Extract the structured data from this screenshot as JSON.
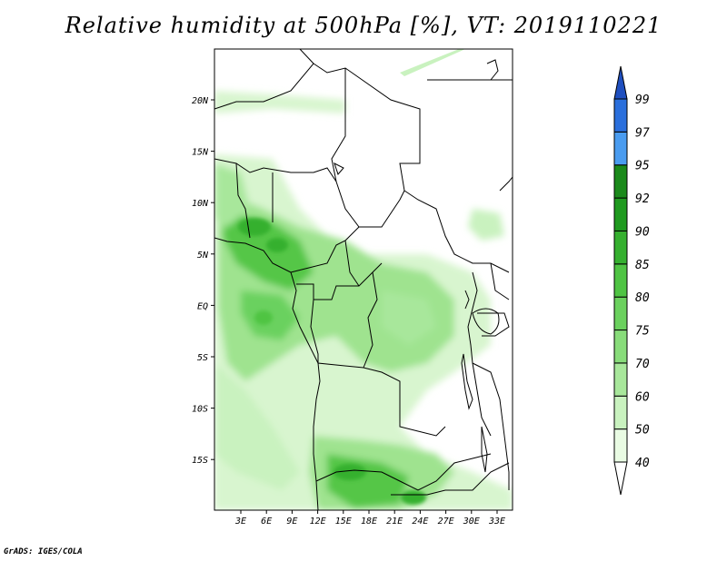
{
  "title": "Relative humidity at 500hPa [%], VT: 2019110221",
  "footer": "GrADS: IGES/COLA",
  "map": {
    "lat_labels": [
      "20N",
      "15N",
      "10N",
      "5N",
      "EQ",
      "5S",
      "10S",
      "15S"
    ],
    "lon_labels": [
      "3E",
      "6E",
      "9E",
      "12E",
      "15E",
      "18E",
      "21E",
      "24E",
      "27E",
      "30E",
      "33E"
    ]
  },
  "colorbar": {
    "levels": [
      "40",
      "50",
      "60",
      "70",
      "75",
      "80",
      "85",
      "90",
      "92",
      "95",
      "97",
      "99"
    ],
    "colors": [
      "#ffffff",
      "#e9fbe3",
      "#c9f2bf",
      "#a8e79b",
      "#88dc7a",
      "#6bd15e",
      "#4fc443",
      "#35b02f",
      "#1f9a1f",
      "#1b8a1b",
      "#4a9cf0",
      "#2a6fdc",
      "#1f4fbf"
    ]
  },
  "colors": {
    "coast": "#000000",
    "field_light": "#d8f5cf",
    "field_mid": "#9fe38f",
    "field_dark": "#55c646"
  }
}
